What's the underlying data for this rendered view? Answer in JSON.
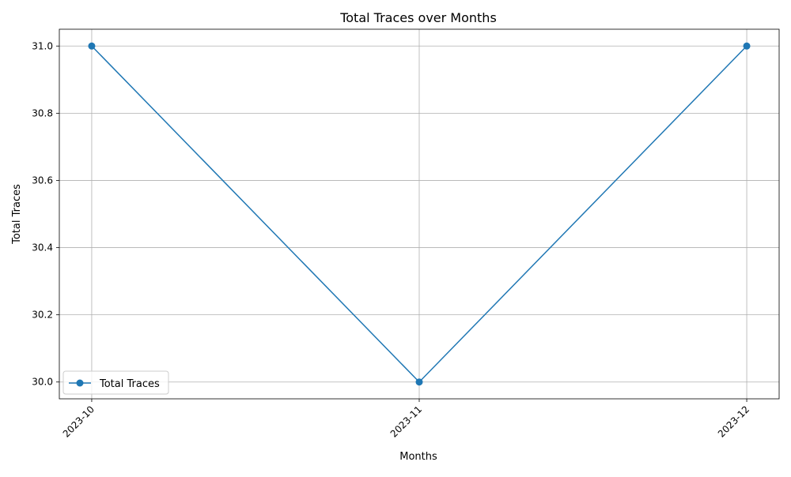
{
  "chart_data": {
    "type": "line",
    "title": "Total Traces over Months",
    "xlabel": "Months",
    "ylabel": "Total Traces",
    "categories": [
      "2023-10",
      "2023-11",
      "2023-12"
    ],
    "series": [
      {
        "name": "Total Traces",
        "values": [
          31,
          30,
          31
        ],
        "color": "#1f77b4",
        "marker": "circle"
      }
    ],
    "ylim": [
      29.95,
      31.05
    ],
    "y_ticks": [
      "30.0",
      "30.2",
      "30.4",
      "30.6",
      "30.8",
      "31.0"
    ],
    "grid": true,
    "legend_position": "lower-left",
    "x_tick_rotation": "45deg"
  }
}
